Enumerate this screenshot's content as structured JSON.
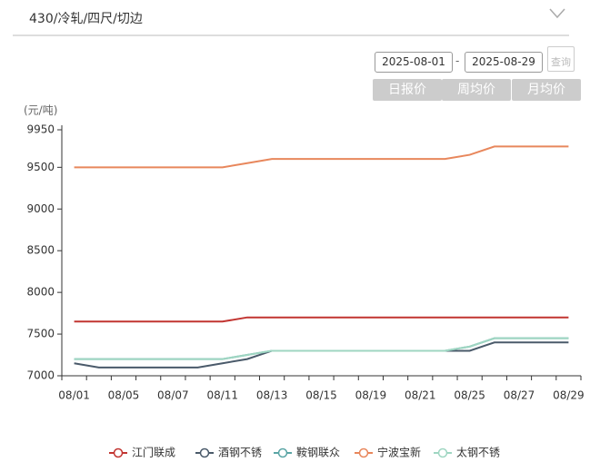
{
  "header": {
    "title": "430/冷轧/四尺/切边"
  },
  "controls": {
    "start_date": "2025-08-01",
    "separator": "-",
    "end_date": "2025-08-29",
    "query": "查询",
    "buttons": [
      "日报价",
      "周均价",
      "月均价"
    ]
  },
  "chart_data": {
    "type": "line",
    "y_label": "(元/吨)",
    "categories": [
      "08/01",
      null,
      "08/05",
      null,
      "08/07",
      null,
      "08/11",
      null,
      "08/13",
      null,
      "08/15",
      null,
      "08/19",
      null,
      "08/21",
      null,
      "08/25",
      null,
      "08/27",
      null,
      "08/29"
    ],
    "series": [
      {
        "name": "江门联成",
        "color": "#c23531",
        "values": [
          7650,
          7650,
          7650,
          7650,
          7650,
          7650,
          7650,
          7700,
          7700,
          7700,
          7700,
          7700,
          7700,
          7700,
          7700,
          7700,
          7700,
          7700,
          7700,
          7700,
          7700
        ]
      },
      {
        "name": "酒钢不锈",
        "color": "#4a5a6a",
        "values": [
          7150,
          7100,
          7100,
          7100,
          7100,
          7100,
          7150,
          7200,
          7300,
          7300,
          7300,
          7300,
          7300,
          7300,
          7300,
          7300,
          7300,
          7400,
          7400,
          7400,
          7400
        ]
      },
      {
        "name": "鞍钢联众",
        "color": "#5aa5a5",
        "values": [
          7200,
          7200,
          7200,
          7200,
          7200,
          7200,
          7200,
          7250,
          7300,
          7300,
          7300,
          7300,
          7300,
          7300,
          7300,
          7300,
          7350,
          7450,
          7450,
          7450,
          7450
        ]
      },
      {
        "name": "宁波宝新",
        "color": "#e8875c",
        "values": [
          9500,
          9500,
          9500,
          9500,
          9500,
          9500,
          9500,
          9550,
          9600,
          9600,
          9600,
          9600,
          9600,
          9600,
          9600,
          9600,
          9650,
          9750,
          9750,
          9750,
          9750
        ]
      },
      {
        "name": "太钢不锈",
        "color": "#9fd6c2",
        "values": [
          7200,
          7200,
          7200,
          7200,
          7200,
          7200,
          7200,
          7250,
          7300,
          7300,
          7300,
          7300,
          7300,
          7300,
          7300,
          7300,
          7350,
          7450,
          7450,
          7450,
          7450
        ]
      }
    ],
    "ylim": [
      7000,
      9950
    ],
    "yticks": [
      7000,
      7500,
      8000,
      8500,
      9000,
      9500,
      9950
    ],
    "grid": false
  }
}
